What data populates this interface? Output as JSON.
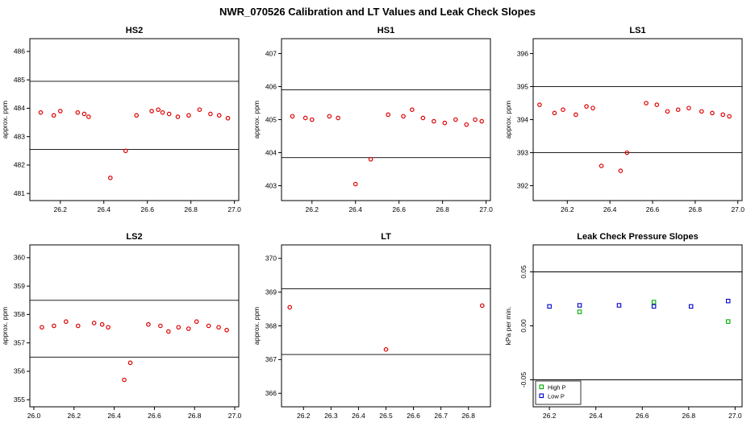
{
  "page_title": "NWR_070526  Calibration and LT Values and Leak Check Slopes",
  "colors": {
    "calibration": "#dd0000",
    "high_p": "#00aa00",
    "low_p": "#0000cc",
    "frame": "#000000"
  },
  "chart_data": [
    {
      "type": "scatter",
      "title": "HS2",
      "ylabel": "approx. ppm",
      "xlim": [
        26.06,
        27.02
      ],
      "ylim": [
        480.75,
        486.45
      ],
      "xticks": [
        "26.2",
        "26.4",
        "26.6",
        "26.8",
        "27.0"
      ],
      "yticks": [
        "481",
        "482",
        "483",
        "484",
        "485",
        "486"
      ],
      "ytick_vertical": false,
      "hlines": [
        484.95,
        482.55
      ],
      "series": [
        {
          "name": "calibration",
          "color": "#dd0000",
          "marker": "circle",
          "points": [
            [
              26.11,
              483.85
            ],
            [
              26.17,
              483.75
            ],
            [
              26.2,
              483.9
            ],
            [
              26.28,
              483.85
            ],
            [
              26.31,
              483.8
            ],
            [
              26.33,
              483.7
            ],
            [
              26.43,
              481.55
            ],
            [
              26.5,
              482.5
            ],
            [
              26.55,
              483.75
            ],
            [
              26.62,
              483.9
            ],
            [
              26.65,
              483.95
            ],
            [
              26.67,
              483.85
            ],
            [
              26.7,
              483.8
            ],
            [
              26.74,
              483.7
            ],
            [
              26.79,
              483.75
            ],
            [
              26.84,
              483.95
            ],
            [
              26.89,
              483.8
            ],
            [
              26.93,
              483.75
            ],
            [
              26.97,
              483.65
            ]
          ]
        }
      ]
    },
    {
      "type": "scatter",
      "title": "HS1",
      "ylabel": "approx. ppm",
      "xlim": [
        26.06,
        27.02
      ],
      "ylim": [
        402.55,
        407.45
      ],
      "xticks": [
        "26.2",
        "26.4",
        "26.6",
        "26.8",
        "27.0"
      ],
      "yticks": [
        "403",
        "404",
        "405",
        "406",
        "407"
      ],
      "ytick_vertical": false,
      "hlines": [
        405.9,
        403.85
      ],
      "series": [
        {
          "name": "calibration",
          "color": "#dd0000",
          "marker": "circle",
          "points": [
            [
              26.11,
              405.1
            ],
            [
              26.17,
              405.05
            ],
            [
              26.2,
              405.0
            ],
            [
              26.28,
              405.1
            ],
            [
              26.32,
              405.05
            ],
            [
              26.4,
              403.05
            ],
            [
              26.47,
              403.8
            ],
            [
              26.55,
              405.15
            ],
            [
              26.62,
              405.1
            ],
            [
              26.66,
              405.3
            ],
            [
              26.71,
              405.05
            ],
            [
              26.76,
              404.95
            ],
            [
              26.81,
              404.9
            ],
            [
              26.86,
              405.0
            ],
            [
              26.91,
              404.85
            ],
            [
              26.95,
              405.0
            ],
            [
              26.98,
              404.95
            ]
          ]
        }
      ]
    },
    {
      "type": "scatter",
      "title": "LS1",
      "ylabel": "approx. ppm",
      "xlim": [
        26.04,
        27.02
      ],
      "ylim": [
        391.55,
        396.45
      ],
      "xticks": [
        "26.2",
        "26.4",
        "26.6",
        "26.8",
        "27.0"
      ],
      "yticks": [
        "392",
        "393",
        "394",
        "395",
        "396"
      ],
      "ytick_vertical": false,
      "hlines": [
        395.0,
        393.0
      ],
      "series": [
        {
          "name": "calibration",
          "color": "#dd0000",
          "marker": "circle",
          "points": [
            [
              26.07,
              394.45
            ],
            [
              26.14,
              394.2
            ],
            [
              26.18,
              394.3
            ],
            [
              26.24,
              394.15
            ],
            [
              26.29,
              394.4
            ],
            [
              26.32,
              394.35
            ],
            [
              26.36,
              392.6
            ],
            [
              26.45,
              392.45
            ],
            [
              26.48,
              393.0
            ],
            [
              26.57,
              394.5
            ],
            [
              26.62,
              394.45
            ],
            [
              26.67,
              394.25
            ],
            [
              26.72,
              394.3
            ],
            [
              26.77,
              394.35
            ],
            [
              26.83,
              394.25
            ],
            [
              26.88,
              394.2
            ],
            [
              26.93,
              394.15
            ],
            [
              26.96,
              394.1
            ]
          ]
        }
      ]
    },
    {
      "type": "scatter",
      "title": "LS2",
      "ylabel": "approx. ppm",
      "xlim": [
        25.98,
        27.02
      ],
      "ylim": [
        354.75,
        360.45
      ],
      "xticks": [
        "26.0",
        "26.2",
        "26.4",
        "26.6",
        "26.8",
        "27.0"
      ],
      "yticks": [
        "355",
        "356",
        "357",
        "358",
        "359",
        "360"
      ],
      "ytick_vertical": false,
      "hlines": [
        358.5,
        356.5
      ],
      "series": [
        {
          "name": "calibration",
          "color": "#dd0000",
          "marker": "circle",
          "points": [
            [
              26.04,
              357.55
            ],
            [
              26.1,
              357.6
            ],
            [
              26.16,
              357.75
            ],
            [
              26.22,
              357.6
            ],
            [
              26.3,
              357.7
            ],
            [
              26.34,
              357.65
            ],
            [
              26.37,
              357.55
            ],
            [
              26.45,
              355.7
            ],
            [
              26.48,
              356.3
            ],
            [
              26.57,
              357.65
            ],
            [
              26.63,
              357.6
            ],
            [
              26.67,
              357.4
            ],
            [
              26.72,
              357.55
            ],
            [
              26.77,
              357.5
            ],
            [
              26.81,
              357.75
            ],
            [
              26.87,
              357.6
            ],
            [
              26.92,
              357.55
            ],
            [
              26.96,
              357.45
            ]
          ]
        }
      ]
    },
    {
      "type": "scatter",
      "title": "LT",
      "ylabel": "approx. ppm",
      "xlim": [
        26.12,
        26.88
      ],
      "ylim": [
        365.6,
        370.4
      ],
      "xticks": [
        "26.2",
        "26.3",
        "26.4",
        "26.5",
        "26.6",
        "26.7",
        "26.8"
      ],
      "yticks": [
        "366",
        "367",
        "368",
        "369",
        "370"
      ],
      "ytick_vertical": false,
      "hlines": [
        369.1,
        367.15
      ],
      "series": [
        {
          "name": "lt-values",
          "color": "#dd0000",
          "marker": "circle",
          "points": [
            [
              26.15,
              368.55
            ],
            [
              26.5,
              367.3
            ],
            [
              26.85,
              368.6
            ]
          ]
        }
      ]
    },
    {
      "type": "scatter",
      "title": "Leak Check Pressure Slopes",
      "ylabel": "kPa per min.",
      "xlim": [
        26.13,
        27.03
      ],
      "ylim": [
        -0.075,
        0.075
      ],
      "xticks": [
        "26.2",
        "26.4",
        "26.6",
        "26.8",
        "27.0"
      ],
      "yticks": [
        "-0.05",
        "0.00",
        "0.05"
      ],
      "ytick_vertical": true,
      "hlines": [
        0.05,
        -0.05
      ],
      "series": [
        {
          "name": "High P",
          "color": "#00aa00",
          "marker": "square",
          "points": [
            [
              26.33,
              0.013
            ],
            [
              26.65,
              0.022
            ],
            [
              26.97,
              0.004
            ]
          ]
        },
        {
          "name": "Low P",
          "color": "#0000cc",
          "marker": "square",
          "points": [
            [
              26.2,
              0.018
            ],
            [
              26.33,
              0.019
            ],
            [
              26.5,
              0.019
            ],
            [
              26.65,
              0.018
            ],
            [
              26.81,
              0.018
            ],
            [
              26.97,
              0.023
            ]
          ]
        }
      ],
      "legend": {
        "position": "bottom-left",
        "items": [
          {
            "label": "High P",
            "color": "#00aa00",
            "marker": "square"
          },
          {
            "label": "Low P",
            "color": "#0000cc",
            "marker": "square"
          }
        ]
      }
    }
  ]
}
